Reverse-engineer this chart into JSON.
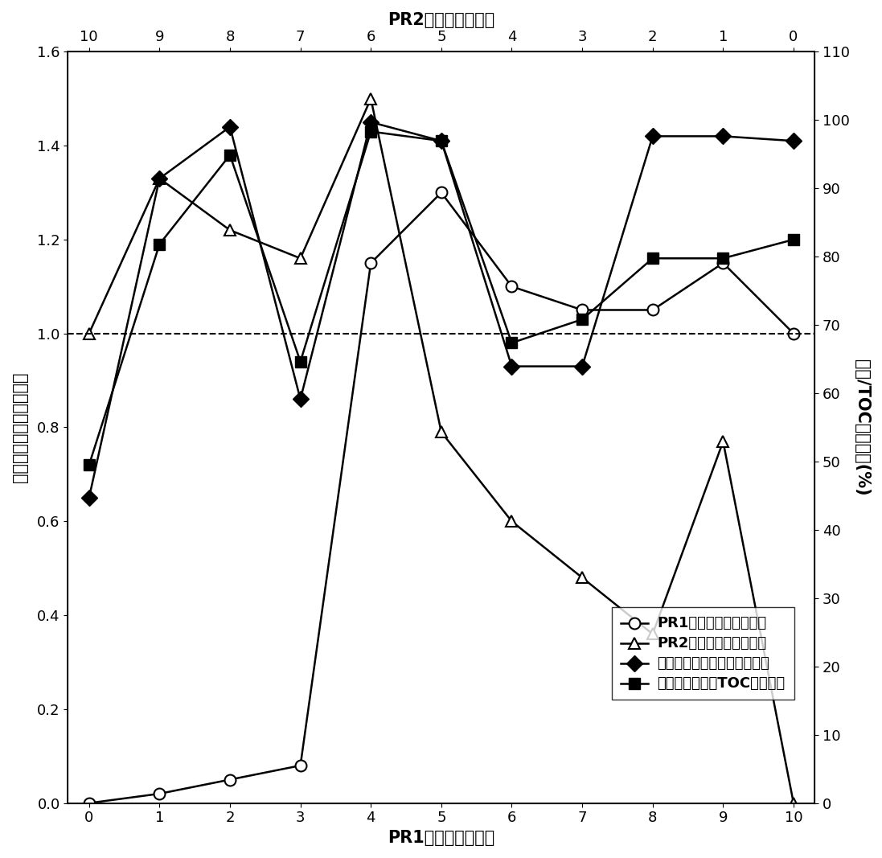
{
  "pr1_x": [
    0,
    1,
    2,
    3,
    4,
    5,
    6,
    7,
    8,
    9,
    10
  ],
  "pr2_x": [
    10,
    9,
    8,
    7,
    6,
    5,
    4,
    3,
    2,
    1,
    0
  ],
  "pr1_cfu": [
    0.0,
    0.02,
    0.05,
    0.08,
    1.15,
    1.3,
    1.1,
    1.05,
    1.05,
    1.15,
    1.0
  ],
  "pr2_cfu": [
    1.0,
    1.33,
    1.22,
    1.16,
    1.5,
    0.79,
    0.6,
    0.48,
    0.36,
    0.77,
    0.0
  ],
  "phenol_deg": [
    0.65,
    1.33,
    1.44,
    0.86,
    1.45,
    1.41,
    0.93,
    0.93,
    1.42,
    1.42,
    1.41
  ],
  "toc_deg": [
    0.72,
    1.19,
    1.38,
    0.94,
    1.43,
    1.41,
    0.98,
    1.03,
    1.16,
    1.16,
    1.2
  ],
  "left_ylim": [
    0,
    1.6
  ],
  "right_ylim": [
    0,
    110
  ],
  "left_yticks": [
    0.0,
    0.2,
    0.4,
    0.6,
    0.8,
    1.0,
    1.2,
    1.4,
    1.6
  ],
  "right_yticks": [
    0,
    10,
    20,
    30,
    40,
    50,
    60,
    70,
    80,
    90,
    100,
    110
  ],
  "xlabel_bottom": "PR1的初始接种比例",
  "xlabel_top": "PR2的初始接种比例",
  "ylabel_left": "菌株的相对菌落形成单位",
  "ylabel_right": "苯酚/TOC的降解率(%)",
  "legend_labels": [
    "PR1的相对菌落形成单位",
    "PR2的相对菌落形成单位",
    "二元复合菌群对苯酚的降解率",
    "二元复合菌群对TOC的降解率"
  ],
  "dashed_line_y": 1.0,
  "background_color": "#ffffff",
  "fontsize_label": 15,
  "fontsize_tick": 13,
  "fontsize_legend": 13
}
